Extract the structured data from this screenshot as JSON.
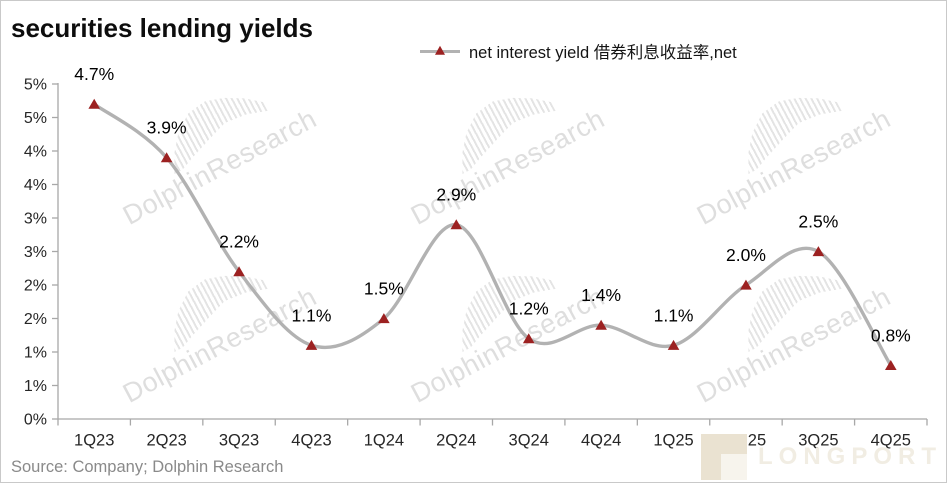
{
  "header": {
    "title": "securities lending yields"
  },
  "legend": {
    "label": "net interest yield 借券利息收益率,net",
    "marker_color": "#9c2121",
    "line_color": "#b2b2b2"
  },
  "source": {
    "text": "Source: Company; Dolphin Research"
  },
  "watermark": {
    "text": "DolphinResearch",
    "brand": "LONGPORT"
  },
  "chart_data": {
    "type": "line",
    "smooth": true,
    "title": "securities lending yields",
    "categories": [
      "1Q23",
      "2Q23",
      "3Q23",
      "4Q23",
      "1Q24",
      "2Q24",
      "3Q24",
      "4Q24",
      "1Q25",
      "2Q25",
      "3Q25",
      "4Q25"
    ],
    "series": [
      {
        "name": "net interest yield 借券利息收益率,net",
        "values": [
          4.7,
          3.9,
          2.2,
          1.1,
          1.5,
          2.9,
          1.2,
          1.4,
          1.1,
          2.0,
          2.5,
          0.8
        ],
        "labels": [
          "4.7%",
          "3.9%",
          "2.2%",
          "1.1%",
          "1.5%",
          "2.9%",
          "1.2%",
          "1.4%",
          "1.1%",
          "2.0%",
          "2.5%",
          "0.8%"
        ]
      }
    ],
    "xlabel": "",
    "ylabel": "",
    "ylim": [
      0,
      5
    ],
    "y_tick_step": 0.5,
    "y_tick_labels": [
      "5%",
      "5%",
      "4%",
      "4%",
      "3%",
      "3%",
      "2%",
      "2%",
      "1%",
      "1%",
      "0%"
    ],
    "grid": false,
    "legend_position": "top",
    "line_color": "#b2b2b2",
    "marker_color": "#9c2121",
    "marker_shape": "triangle-up",
    "axis_color": "#a8a8a8",
    "label_color": "#000000",
    "tick_label_color": "#262626"
  }
}
